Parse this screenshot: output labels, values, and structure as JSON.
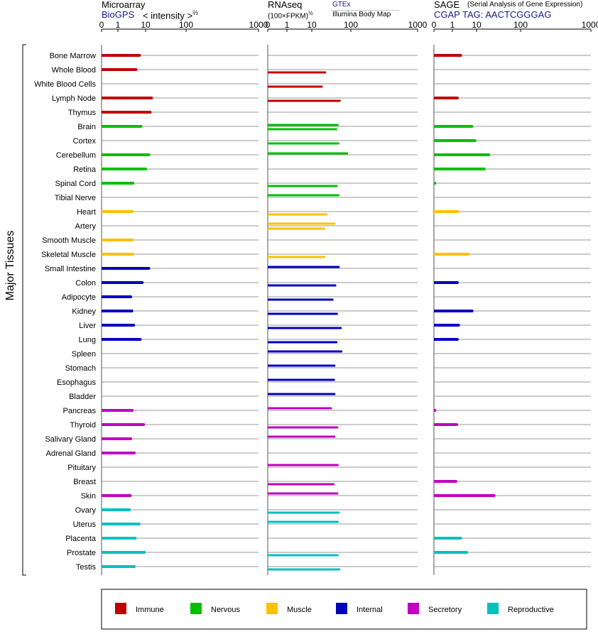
{
  "headers": {
    "microarray": {
      "title": "Microarray",
      "source": "BioGPS",
      "scale_label": "< intensity >",
      "scale_exponent": "⅔"
    },
    "rnaseq": {
      "title": "RNAseq",
      "scale_label": "(100×FPKM)",
      "scale_exponent": "½",
      "source1": "GTEx",
      "source2": "Illumina Body Map"
    },
    "sage": {
      "title": "SAGE",
      "subtitle": "(Serial Analysis of Gene Expression)",
      "tag": "CGAP TAG: AACTCGGGAG"
    }
  },
  "y_group_label": "Major Tissues",
  "legend": [
    {
      "label": "Immune",
      "color": "#c00000"
    },
    {
      "label": "Nervous",
      "color": "#00c000"
    },
    {
      "label": "Muscle",
      "color": "#ffc000"
    },
    {
      "label": "Internal",
      "color": "#0000c0"
    },
    {
      "label": "Secretory",
      "color": "#c000c0"
    },
    {
      "label": "Reproductive",
      "color": "#00c0c0"
    }
  ],
  "chart_data": {
    "type": "bar",
    "x_ticks": [
      "0",
      "1",
      "10",
      "100",
      "1000"
    ],
    "categories": [
      "Bone Marrow",
      "Whole Blood",
      "White Blood Cells",
      "Lymph Node",
      "Thymus",
      "Brain",
      "Cortex",
      "Cerebellum",
      "Retina",
      "Spinal Cord",
      "Tibial Nerve",
      "Heart",
      "Artery",
      "Smooth Muscle",
      "Skeletal Muscle",
      "Small Intestine",
      "Colon",
      "Adipocyte",
      "Kidney",
      "Liver",
      "Lung",
      "Spleen",
      "Stomach",
      "Esophagus",
      "Bladder",
      "Pancreas",
      "Thyroid",
      "Salivary Gland",
      "Adrenal Gland",
      "Pituitary",
      "Breast",
      "Skin",
      "Ovary",
      "Uterus",
      "Placenta",
      "Prostate",
      "Testis"
    ],
    "systems": [
      "Immune",
      "Immune",
      "Immune",
      "Immune",
      "Immune",
      "Nervous",
      "Nervous",
      "Nervous",
      "Nervous",
      "Nervous",
      "Nervous",
      "Muscle",
      "Muscle",
      "Muscle",
      "Muscle",
      "Internal",
      "Internal",
      "Internal",
      "Internal",
      "Internal",
      "Internal",
      "Internal",
      "Internal",
      "Internal",
      "Internal",
      "Secretory",
      "Secretory",
      "Secretory",
      "Secretory",
      "Secretory",
      "Secretory",
      "Secretory",
      "Reproductive",
      "Reproductive",
      "Reproductive",
      "Reproductive",
      "Reproductive"
    ],
    "microarray": [
      6,
      4.5,
      null,
      14,
      13,
      6.8,
      null,
      12,
      10,
      3.5,
      null,
      3.3,
      null,
      3.3,
      3.5,
      12,
      7.6,
      2.9,
      3.2,
      3.7,
      6.4,
      null,
      null,
      null,
      null,
      3.3,
      8.5,
      2.9,
      3.9,
      null,
      null,
      2.8,
      2.6,
      5.8,
      4.2,
      9,
      3.9
    ],
    "rnaseq_gtex": [
      null,
      null,
      null,
      null,
      null,
      46,
      null,
      80,
      null,
      null,
      null,
      null,
      null,
      null,
      null,
      49,
      null,
      null,
      null,
      null,
      null,
      null,
      null,
      null,
      null,
      null,
      null,
      null,
      null,
      null,
      null,
      null,
      null,
      null,
      null,
      null,
      null
    ],
    "rnaseq_ibm": [
      null,
      22,
      18,
      52,
      null,
      42,
      48,
      null,
      null,
      43,
      null,
      24,
      21,
      null,
      21,
      null,
      40,
      34,
      44,
      55,
      43,
      null,
      null,
      null,
      null,
      null,
      45,
      null,
      null,
      null,
      36,
      null,
      49,
      null,
      null,
      46,
      51
    ],
    "rnaseq_single": [
      null,
      null,
      null,
      null,
      null,
      null,
      null,
      null,
      null,
      null,
      48,
      null,
      38,
      null,
      null,
      null,
      null,
      null,
      null,
      null,
      null,
      57,
      38,
      37,
      38,
      31,
      null,
      38,
      null,
      46,
      null,
      45,
      null,
      46,
      null,
      null,
      null
    ],
    "sage": [
      2.2,
      null,
      null,
      1.6,
      null,
      6.4,
      8.6,
      19,
      15,
      0.05,
      null,
      1.7,
      null,
      null,
      4.5,
      null,
      1.6,
      null,
      6.5,
      1.8,
      1.6,
      null,
      null,
      null,
      null,
      0.05,
      1.5,
      null,
      null,
      null,
      1.4,
      25,
      null,
      null,
      2.2,
      3.9,
      null
    ]
  },
  "colors": {
    "immune": "#c00000",
    "nervous": "#00c000",
    "muscle": "#ffc000",
    "internal": "#0000c0",
    "secretory": "#c000c0",
    "reproductive": "#00c0c0"
  }
}
